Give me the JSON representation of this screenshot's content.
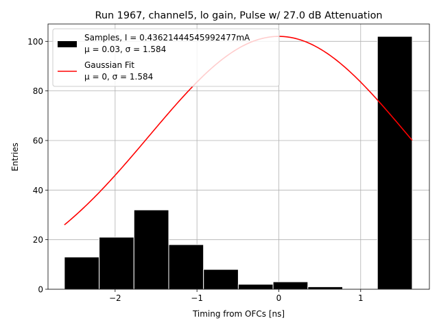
{
  "chart_data": {
    "type": "bar",
    "title": "Run 1967, channel5, lo gain, Pulse w/ 27.0 dB Attenuation",
    "xlabel": "Timing from OFCs [ns]",
    "ylabel": "Entries",
    "xlim": [
      -2.82,
      1.84
    ],
    "ylim": [
      0,
      107
    ],
    "xticks": [
      -2,
      -1,
      0,
      1
    ],
    "xtick_labels": [
      "−2",
      "−1",
      "0",
      "1"
    ],
    "yticks": [
      0,
      20,
      40,
      60,
      80,
      100
    ],
    "ytick_labels": [
      "0",
      "20",
      "40",
      "60",
      "80",
      "100"
    ],
    "grid": true,
    "legend_placement": "top-left",
    "histogram": {
      "name": "Samples, I = 0.43621444545992477mA",
      "stats": "μ = 0.03, σ = 1.584",
      "color": "#000000",
      "bins": [
        {
          "x0": -2.62,
          "x1": -2.195,
          "count": 13
        },
        {
          "x0": -2.195,
          "x1": -1.77,
          "count": 21
        },
        {
          "x0": -1.77,
          "x1": -1.345,
          "count": 32
        },
        {
          "x0": -1.345,
          "x1": -0.92,
          "count": 18
        },
        {
          "x0": -0.92,
          "x1": -0.495,
          "count": 8
        },
        {
          "x0": -0.495,
          "x1": -0.07,
          "count": 2
        },
        {
          "x0": -0.07,
          "x1": 0.355,
          "count": 3
        },
        {
          "x0": 0.355,
          "x1": 0.78,
          "count": 1
        },
        {
          "x0": 0.78,
          "x1": 1.205,
          "count": 0
        },
        {
          "x0": 1.205,
          "x1": 1.63,
          "count": 102
        }
      ]
    },
    "fit": {
      "name": "Gaussian Fit",
      "stats": "μ = 0, σ = 1.584",
      "color": "#ff0000",
      "amplitude": 102,
      "mu": 0,
      "sigma": 1.584,
      "x_range": [
        -2.62,
        1.63
      ]
    }
  }
}
